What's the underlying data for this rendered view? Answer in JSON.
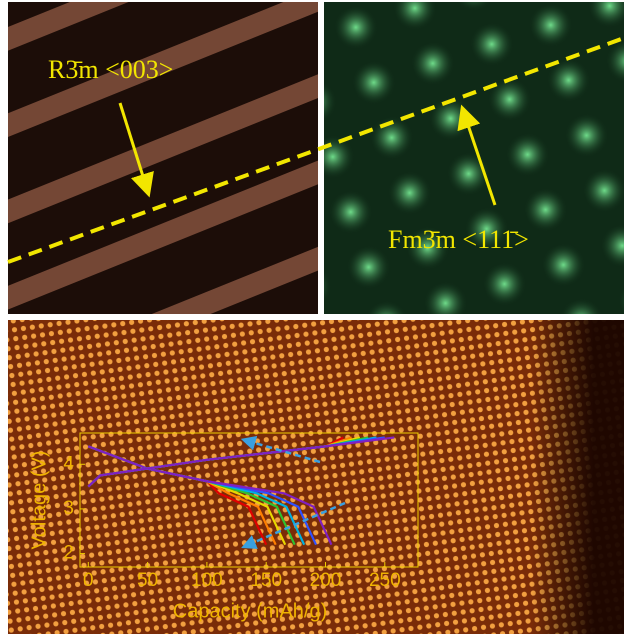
{
  "panels": {
    "left_label": "R3̄m <003>",
    "right_label": "Fm3̄m <111̄>"
  },
  "chart_data": {
    "type": "line",
    "xlabel": "Capacity (mAh/g)",
    "ylabel": "Voltage (V)",
    "xlim": [
      -7,
      278
    ],
    "ylim": [
      1.7,
      4.7
    ],
    "xticks": [
      0,
      50,
      100,
      150,
      200,
      250
    ],
    "yticks": [
      2,
      3,
      4
    ],
    "series": [
      {
        "color": "#e00000",
        "x": [
          0,
          50,
          100,
          110,
          135,
          150
        ],
        "values": [
          4.4,
          3.9,
          3.62,
          3.35,
          3.05,
          2.2
        ]
      },
      {
        "color": "#ff7f00",
        "x": [
          0,
          50,
          100,
          118,
          143,
          158
        ],
        "values": [
          4.4,
          3.9,
          3.62,
          3.35,
          3.05,
          2.2
        ]
      },
      {
        "color": "#e8d800",
        "x": [
          0,
          50,
          100,
          126,
          151,
          166
        ],
        "values": [
          4.4,
          3.9,
          3.62,
          3.35,
          3.05,
          2.2
        ]
      },
      {
        "color": "#30c030",
        "x": [
          0,
          50,
          100,
          134,
          159,
          174
        ],
        "values": [
          4.4,
          3.9,
          3.62,
          3.35,
          3.05,
          2.2
        ]
      },
      {
        "color": "#00b0e0",
        "x": [
          0,
          50,
          100,
          142,
          167,
          182
        ],
        "values": [
          4.4,
          3.9,
          3.62,
          3.35,
          3.05,
          2.2
        ]
      },
      {
        "color": "#3050ff",
        "x": [
          0,
          50,
          100,
          152,
          177,
          192
        ],
        "values": [
          4.4,
          3.9,
          3.62,
          3.35,
          3.05,
          2.2
        ]
      },
      {
        "color": "#8020c0",
        "x": [
          0,
          50,
          100,
          165,
          190,
          205
        ],
        "values": [
          4.4,
          3.9,
          3.62,
          3.35,
          3.05,
          2.2
        ]
      },
      {
        "color": "#e00000",
        "x": [
          0,
          10,
          100,
          200,
          215
        ],
        "values": [
          3.5,
          3.75,
          4.1,
          4.4,
          4.6
        ]
      },
      {
        "color": "#ff7f00",
        "x": [
          0,
          10,
          100,
          200,
          222
        ],
        "values": [
          3.5,
          3.75,
          4.1,
          4.4,
          4.6
        ]
      },
      {
        "color": "#e8d800",
        "x": [
          0,
          10,
          100,
          200,
          229
        ],
        "values": [
          3.5,
          3.75,
          4.1,
          4.4,
          4.6
        ]
      },
      {
        "color": "#30c030",
        "x": [
          0,
          10,
          100,
          200,
          236
        ],
        "values": [
          3.5,
          3.75,
          4.1,
          4.4,
          4.6
        ]
      },
      {
        "color": "#00b0e0",
        "x": [
          0,
          10,
          100,
          200,
          243
        ],
        "values": [
          3.5,
          3.75,
          4.1,
          4.4,
          4.6
        ]
      },
      {
        "color": "#3050ff",
        "x": [
          0,
          10,
          100,
          200,
          250
        ],
        "values": [
          3.5,
          3.75,
          4.1,
          4.4,
          4.6
        ]
      },
      {
        "color": "#8020c0",
        "x": [
          0,
          10,
          100,
          200,
          258
        ],
        "values": [
          3.5,
          3.75,
          4.1,
          4.4,
          4.6
        ]
      }
    ]
  }
}
